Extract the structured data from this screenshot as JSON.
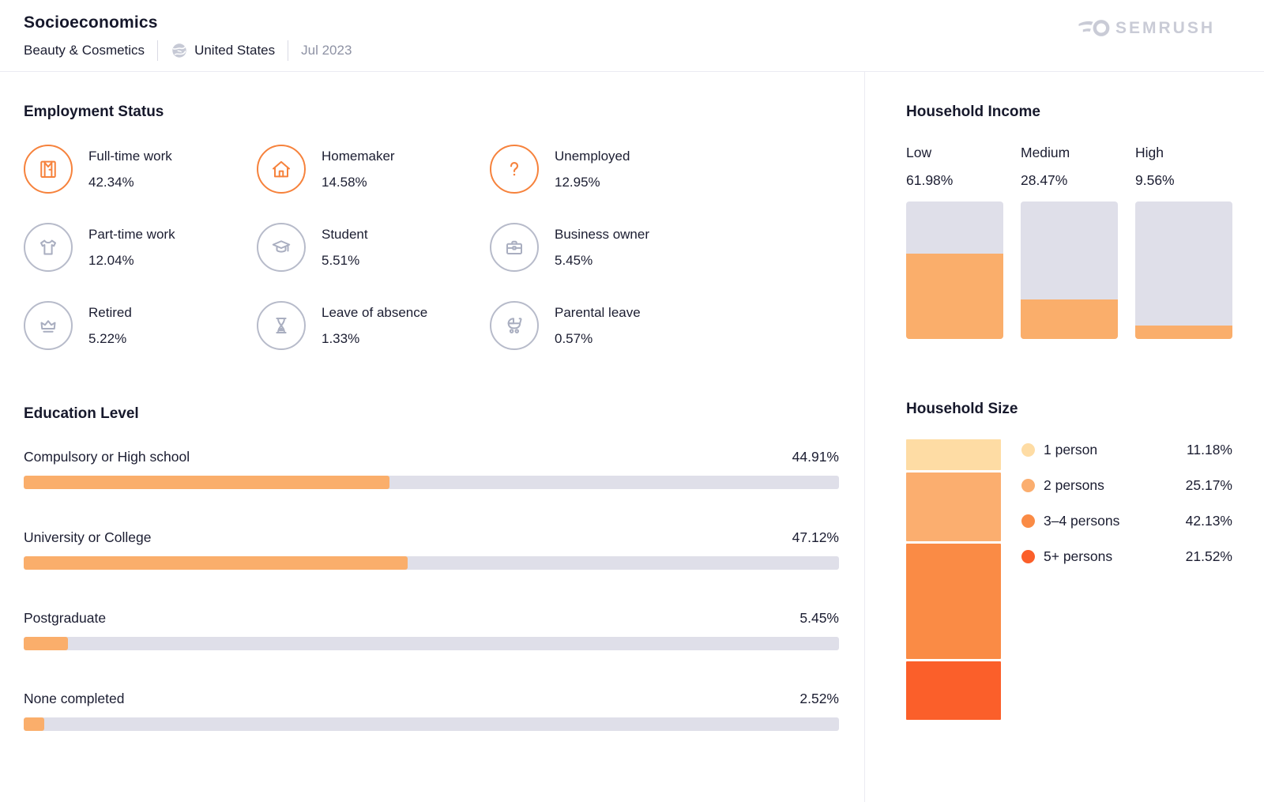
{
  "header": {
    "title": "Socioeconomics",
    "category": "Beauty & Cosmetics",
    "region": "United States",
    "region_icon": "globe-icon",
    "period": "Jul 2023",
    "logo": "SEMRUSH"
  },
  "employment": {
    "heading": "Employment Status",
    "items": [
      {
        "label": "Full-time work",
        "value": "42.34%",
        "icon": "shirt-icon",
        "highlight": true
      },
      {
        "label": "Homemaker",
        "value": "14.58%",
        "icon": "home-icon",
        "highlight": true
      },
      {
        "label": "Unemployed",
        "value": "12.95%",
        "icon": "question-mark-icon",
        "highlight": true
      },
      {
        "label": "Part-time work",
        "value": "12.04%",
        "icon": "tshirt-icon",
        "highlight": false
      },
      {
        "label": "Student",
        "value": "5.51%",
        "icon": "graduation-cap-icon",
        "highlight": false
      },
      {
        "label": "Business owner",
        "value": "5.45%",
        "icon": "briefcase-icon",
        "highlight": false
      },
      {
        "label": "Retired",
        "value": "5.22%",
        "icon": "crown-icon",
        "highlight": false
      },
      {
        "label": "Leave of absence",
        "value": "1.33%",
        "icon": "hourglass-icon",
        "highlight": false
      },
      {
        "label": "Parental leave",
        "value": "0.57%",
        "icon": "stroller-icon",
        "highlight": false
      }
    ]
  },
  "education": {
    "heading": "Education Level",
    "rows": [
      {
        "label": "Compulsory or High school",
        "value_label": "44.91%",
        "value": 44.91
      },
      {
        "label": "University or College",
        "value_label": "47.12%",
        "value": 47.12
      },
      {
        "label": "Postgraduate",
        "value_label": "5.45%",
        "value": 5.45
      },
      {
        "label": "None completed",
        "value_label": "2.52%",
        "value": 2.52
      }
    ]
  },
  "income": {
    "heading": "Household Income",
    "columns": [
      {
        "label": "Low",
        "value_label": "61.98%",
        "value": 61.98
      },
      {
        "label": "Medium",
        "value_label": "28.47%",
        "value": 28.47
      },
      {
        "label": "High",
        "value_label": "9.56%",
        "value": 9.56
      }
    ]
  },
  "household_size": {
    "heading": "Household Size",
    "segments": [
      {
        "label": "1 person",
        "value_label": "11.18%",
        "value": 11.18,
        "color": "#FEDCA4"
      },
      {
        "label": "2 persons",
        "value_label": "25.17%",
        "value": 25.17,
        "color": "#FBAE6F"
      },
      {
        "label": "3–4 persons",
        "value_label": "42.13%",
        "value": 42.13,
        "color": "#FA8B45"
      },
      {
        "label": "5+ persons",
        "value_label": "21.52%",
        "value": 21.52,
        "color": "#FB5F2A"
      }
    ]
  },
  "colors": {
    "accent_orange": "#F6823C",
    "icon_gray": "#B7BBCA",
    "bar_fill_orange": "#FAAE6B",
    "bar_track_gray": "#DFDFE9",
    "muted_text": "#8E92A4",
    "logo_gray": "#C9CBD6"
  },
  "chart_data": [
    {
      "type": "table",
      "title": "Employment Status",
      "categories": [
        "Full-time work",
        "Homemaker",
        "Unemployed",
        "Part-time work",
        "Student",
        "Business owner",
        "Retired",
        "Leave of absence",
        "Parental leave"
      ],
      "values": [
        42.34,
        14.58,
        12.95,
        12.04,
        5.51,
        5.45,
        5.22,
        1.33,
        0.57
      ],
      "unit": "%"
    },
    {
      "type": "bar",
      "title": "Household Income",
      "categories": [
        "Low",
        "Medium",
        "High"
      ],
      "values": [
        61.98,
        28.47,
        9.56
      ],
      "unit": "%",
      "orientation": "vertical",
      "ylim": [
        0,
        100
      ],
      "grid": false
    },
    {
      "type": "bar",
      "title": "Education Level",
      "categories": [
        "Compulsory or High school",
        "University or College",
        "Postgraduate",
        "None completed"
      ],
      "values": [
        44.91,
        47.12,
        5.45,
        2.52
      ],
      "unit": "%",
      "orientation": "horizontal",
      "xlim": [
        0,
        100
      ],
      "grid": false
    },
    {
      "type": "bar",
      "title": "Household Size",
      "stacked": true,
      "categories": [
        "1 person",
        "2 persons",
        "3–4 persons",
        "5+ persons"
      ],
      "values": [
        11.18,
        25.17,
        42.13,
        21.52
      ],
      "unit": "%",
      "legend_position": "right"
    }
  ]
}
